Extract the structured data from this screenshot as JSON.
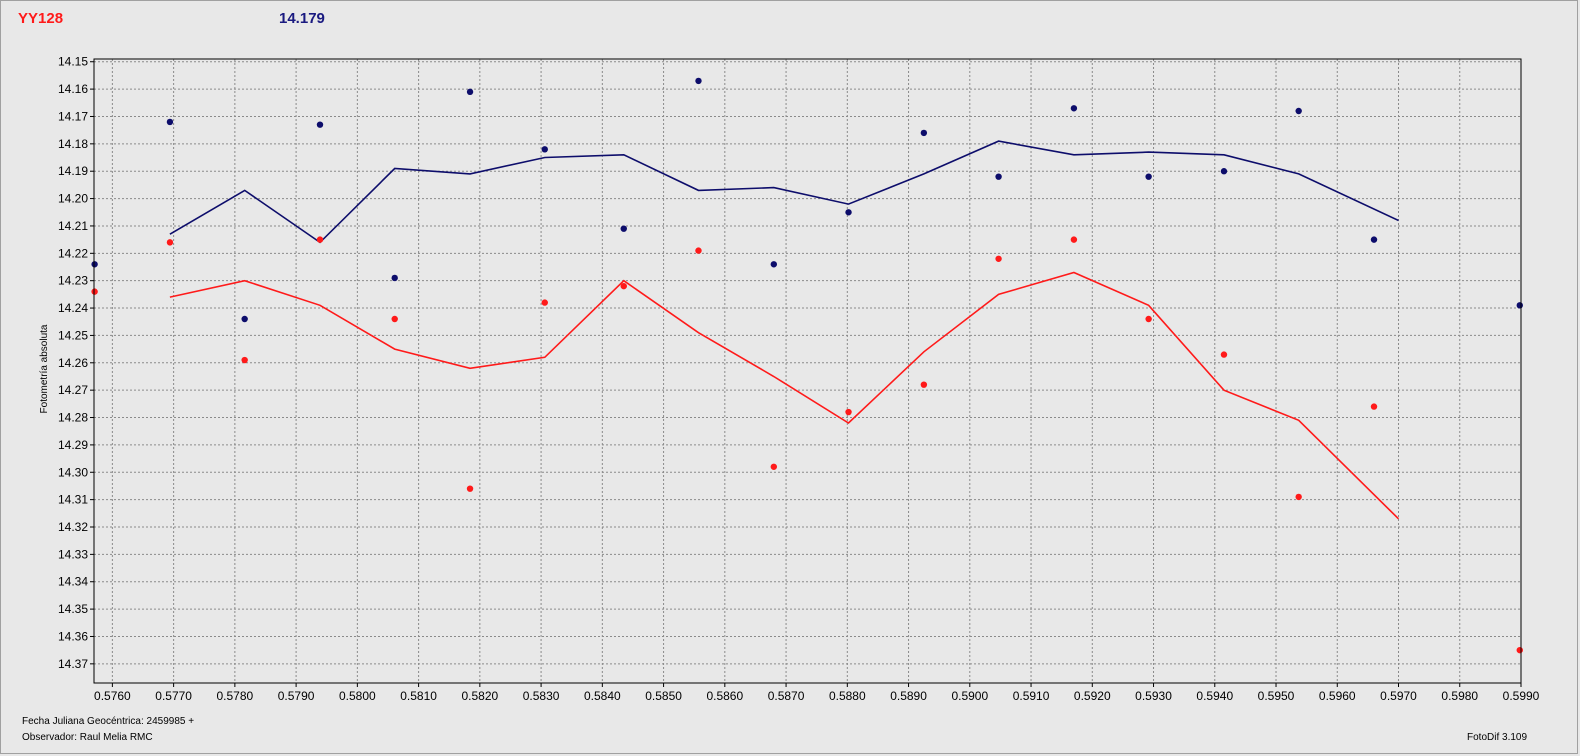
{
  "header": {
    "star_name": "YY128",
    "ref_value": "14.179"
  },
  "footer": {
    "xlabel": "Fecha Juliana Geocéntrica: 2459985 +",
    "observer": "Observador: Raul Melia RMC",
    "software": "FotoDif 3.109"
  },
  "colors": {
    "series1": "#ff1a1a",
    "series2": "#0d0d6b",
    "grid": "#8a8a8a",
    "plot_bg": "#e8e8e8"
  },
  "chart_data": {
    "type": "scatter",
    "xlabel": "Fecha Juliana Geocéntrica: 2459985 +",
    "ylabel": "Fotometría absoluta",
    "xlim": [
      0.5757,
      0.599
    ],
    "ylim": [
      14.149,
      14.377
    ],
    "y_inverted": true,
    "grid": true,
    "x_ticks": [
      "0.5760",
      "0.5770",
      "0.5780",
      "0.5790",
      "0.5800",
      "0.5810",
      "0.5820",
      "0.5830",
      "0.5840",
      "0.5850",
      "0.5860",
      "0.5870",
      "0.5880",
      "0.5890",
      "0.5900",
      "0.5910",
      "0.5920",
      "0.5930",
      "0.5940",
      "0.5950",
      "0.5960",
      "0.5970",
      "0.5980",
      "0.5990"
    ],
    "y_ticks": [
      "14.15",
      "14.16",
      "14.17",
      "14.18",
      "14.19",
      "14.20",
      "14.21",
      "14.22",
      "14.23",
      "14.24",
      "14.25",
      "14.26",
      "14.27",
      "14.28",
      "14.29",
      "14.30",
      "14.31",
      "14.32",
      "14.33",
      "14.34",
      "14.35",
      "14.36",
      "14.37"
    ],
    "series": [
      {
        "points": [
          [
            0.57571,
            14.234
          ],
          [
            0.57694,
            14.216
          ],
          [
            0.57816,
            14.259
          ],
          [
            0.57939,
            14.215
          ],
          [
            0.58061,
            14.244
          ],
          [
            0.58184,
            14.306
          ],
          [
            0.58306,
            14.238
          ],
          [
            0.58435,
            14.232
          ],
          [
            0.58557,
            14.219
          ],
          [
            0.5868,
            14.298
          ],
          [
            0.58802,
            14.278
          ],
          [
            0.58925,
            14.268
          ],
          [
            0.59047,
            14.222
          ],
          [
            0.5917,
            14.215
          ],
          [
            0.59292,
            14.244
          ],
          [
            0.59415,
            14.257
          ],
          [
            0.59537,
            14.309
          ],
          [
            0.5966,
            14.276
          ],
          [
            0.59898,
            14.365
          ]
        ],
        "trend": [
          [
            0.57694,
            14.236
          ],
          [
            0.57816,
            14.23
          ],
          [
            0.57939,
            14.239
          ],
          [
            0.58061,
            14.255
          ],
          [
            0.58184,
            14.262
          ],
          [
            0.58306,
            14.258
          ],
          [
            0.58435,
            14.23
          ],
          [
            0.58557,
            14.249
          ],
          [
            0.5868,
            14.265
          ],
          [
            0.58802,
            14.282
          ],
          [
            0.58925,
            14.256
          ],
          [
            0.59047,
            14.235
          ],
          [
            0.5917,
            14.227
          ],
          [
            0.59292,
            14.239
          ],
          [
            0.59415,
            14.27
          ],
          [
            0.59537,
            14.281
          ],
          [
            0.597,
            14.317
          ]
        ]
      },
      {
        "points": [
          [
            0.57571,
            14.224
          ],
          [
            0.57694,
            14.172
          ],
          [
            0.57816,
            14.244
          ],
          [
            0.57939,
            14.173
          ],
          [
            0.58061,
            14.229
          ],
          [
            0.58184,
            14.161
          ],
          [
            0.58306,
            14.182
          ],
          [
            0.58435,
            14.211
          ],
          [
            0.58557,
            14.157
          ],
          [
            0.5868,
            14.224
          ],
          [
            0.58802,
            14.205
          ],
          [
            0.58925,
            14.176
          ],
          [
            0.59047,
            14.192
          ],
          [
            0.5917,
            14.167
          ],
          [
            0.59292,
            14.192
          ],
          [
            0.59415,
            14.19
          ],
          [
            0.59537,
            14.168
          ],
          [
            0.5966,
            14.215
          ],
          [
            0.59898,
            14.239
          ]
        ],
        "trend": [
          [
            0.57694,
            14.213
          ],
          [
            0.57816,
            14.197
          ],
          [
            0.57939,
            14.216
          ],
          [
            0.58061,
            14.189
          ],
          [
            0.58184,
            14.191
          ],
          [
            0.58306,
            14.185
          ],
          [
            0.58435,
            14.184
          ],
          [
            0.58557,
            14.197
          ],
          [
            0.5868,
            14.196
          ],
          [
            0.58802,
            14.202
          ],
          [
            0.58925,
            14.191
          ],
          [
            0.59047,
            14.179
          ],
          [
            0.5917,
            14.184
          ],
          [
            0.59292,
            14.183
          ],
          [
            0.59415,
            14.184
          ],
          [
            0.59537,
            14.191
          ],
          [
            0.597,
            14.208
          ]
        ]
      }
    ]
  }
}
